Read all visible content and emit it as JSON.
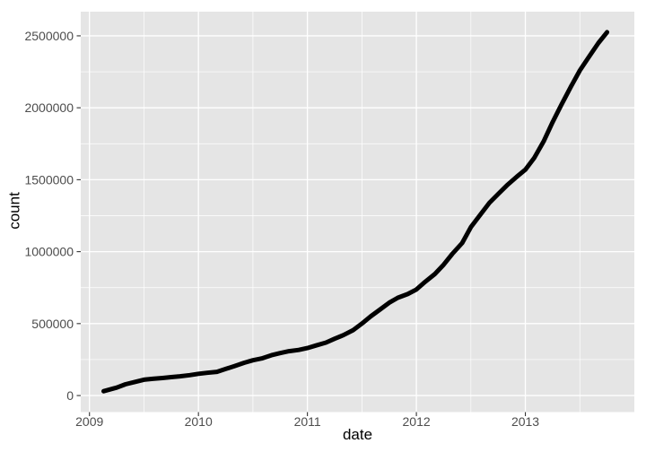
{
  "chart_data": {
    "type": "line",
    "title": "",
    "xlabel": "date",
    "ylabel": "count",
    "theme": "ggplot2-grey",
    "legend": "none",
    "grid": true,
    "xlim": [
      2008.92,
      2014.0
    ],
    "ylim": [
      -115000,
      2668000
    ],
    "x_ticks": [
      2009,
      2010,
      2011,
      2012,
      2013
    ],
    "x_tick_labels": [
      "2009",
      "2010",
      "2011",
      "2012",
      "2013"
    ],
    "x_minor": [
      2009.5,
      2010.5,
      2011.5,
      2012.5,
      2013.5
    ],
    "y_ticks": [
      0,
      500000,
      1000000,
      1500000,
      2000000,
      2500000
    ],
    "y_tick_labels": [
      "0",
      "500000",
      "1000000",
      "1500000",
      "2000000",
      "2500000"
    ],
    "y_minor": [
      250000,
      750000,
      1250000,
      1750000,
      2250000
    ],
    "series": [
      {
        "name": "count",
        "x": [
          2009.13,
          2009.25,
          2009.33,
          2009.42,
          2009.5,
          2009.58,
          2009.67,
          2009.75,
          2009.83,
          2009.92,
          2010.0,
          2010.08,
          2010.17,
          2010.25,
          2010.33,
          2010.42,
          2010.5,
          2010.58,
          2010.67,
          2010.75,
          2010.83,
          2010.92,
          2011.0,
          2011.08,
          2011.17,
          2011.25,
          2011.33,
          2011.42,
          2011.5,
          2011.58,
          2011.67,
          2011.75,
          2011.83,
          2011.92,
          2012.0,
          2012.08,
          2012.17,
          2012.25,
          2012.33,
          2012.42,
          2012.5,
          2012.58,
          2012.67,
          2012.75,
          2012.83,
          2012.92,
          2013.0,
          2013.08,
          2013.17,
          2013.25,
          2013.33,
          2013.42,
          2013.5,
          2013.58,
          2013.67,
          2013.75
        ],
        "y": [
          30000,
          55000,
          78000,
          95000,
          110000,
          116000,
          122000,
          128000,
          134000,
          142000,
          151000,
          158000,
          165000,
          185000,
          205000,
          228000,
          245000,
          258000,
          280000,
          295000,
          308000,
          317000,
          330000,
          348000,
          368000,
          395000,
          420000,
          455000,
          500000,
          550000,
          600000,
          645000,
          680000,
          705000,
          737000,
          790000,
          845000,
          910000,
          985000,
          1060000,
          1170000,
          1250000,
          1340000,
          1400000,
          1460000,
          1520000,
          1570000,
          1650000,
          1770000,
          1900000,
          2020000,
          2150000,
          2260000,
          2350000,
          2450000,
          2525000
        ]
      }
    ],
    "colors": {
      "panel_bg": "#E5E5E5",
      "grid": "#FFFFFF",
      "line": "#000000",
      "axis_text": "#4D4D4D",
      "axis_title": "#000000",
      "tick_mark": "#333333",
      "figure_bg": "#FFFFFF"
    }
  }
}
